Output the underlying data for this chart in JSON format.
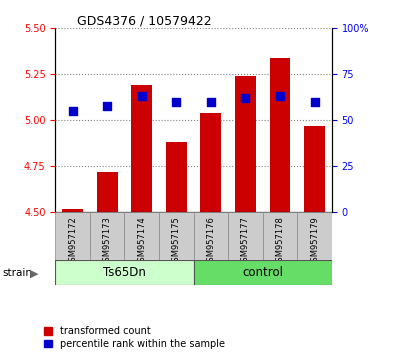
{
  "title": "GDS4376 / 10579422",
  "samples": [
    "GSM957172",
    "GSM957173",
    "GSM957174",
    "GSM957175",
    "GSM957176",
    "GSM957177",
    "GSM957178",
    "GSM957179"
  ],
  "red_values": [
    4.52,
    4.72,
    5.19,
    4.88,
    5.04,
    5.24,
    5.34,
    4.97
  ],
  "blue_values": [
    55,
    58,
    63,
    60,
    60,
    62,
    63,
    60
  ],
  "ylim_left": [
    4.5,
    5.5
  ],
  "ylim_right": [
    0,
    100
  ],
  "yticks_left": [
    4.5,
    4.75,
    5.0,
    5.25,
    5.5
  ],
  "yticks_right": [
    0,
    25,
    50,
    75,
    100
  ],
  "ytick_right_labels": [
    "0",
    "25",
    "50",
    "75",
    "100%"
  ],
  "groups": [
    {
      "label": "Ts65Dn",
      "start": 0,
      "end": 4,
      "color": "#ccffcc"
    },
    {
      "label": "control",
      "start": 4,
      "end": 8,
      "color": "#66dd66"
    }
  ],
  "bar_color": "#cc0000",
  "dot_color": "#0000cc",
  "bar_bottom": 4.5,
  "bar_width": 0.6,
  "dot_size": 40,
  "legend_entries": [
    "transformed count",
    "percentile rank within the sample"
  ],
  "strain_label": "strain",
  "label_bg_color": "#cccccc",
  "label_edge_color": "#888888"
}
